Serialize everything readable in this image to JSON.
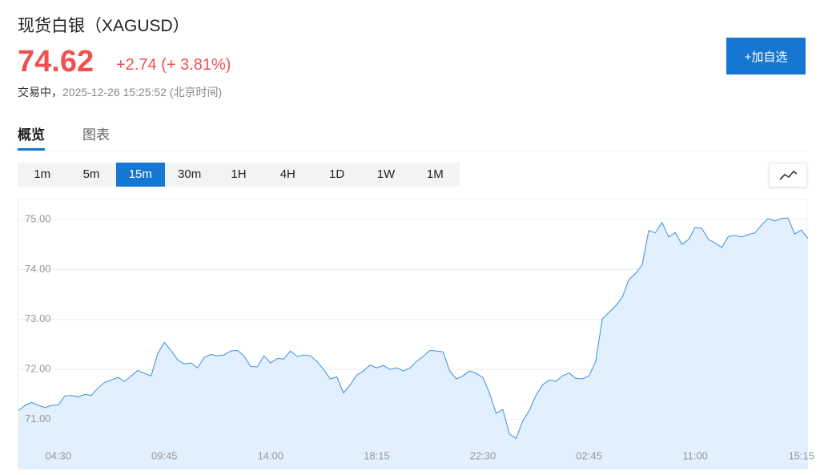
{
  "header": {
    "title": "现货白银（XAGUSD）",
    "price": "74.62",
    "change": "+2.74 (+ 3.81%)",
    "status": "交易中，",
    "time": "2025-12-26 15:25:52 (北京时间)"
  },
  "button": "+加自选",
  "tabs": [
    "概览",
    "图表"
  ],
  "active_tab": 0,
  "intervals": [
    "1m",
    "5m",
    "15m",
    "30m",
    "1H",
    "4H",
    "1D",
    "1W",
    "1M"
  ],
  "active_interval": 2,
  "chart_data": {
    "type": "area",
    "color": "#3a8ee0",
    "fill": "#e2effc",
    "grid": true,
    "ylim": [
      70,
      75.4
    ],
    "yticks": [
      {
        "value": 71,
        "label": "71.00"
      },
      {
        "value": 72,
        "label": "72.00"
      },
      {
        "value": 73,
        "label": "73.00"
      },
      {
        "value": 74,
        "label": "74.00"
      },
      {
        "value": 75,
        "label": "75.00"
      }
    ],
    "categories": [
      null,
      null,
      null,
      null,
      null,
      null,
      "04:30",
      null,
      null,
      null,
      null,
      null,
      null,
      null,
      null,
      null,
      null,
      null,
      null,
      null,
      null,
      null,
      "09:45",
      null,
      null,
      null,
      null,
      null,
      null,
      null,
      null,
      null,
      null,
      null,
      null,
      null,
      null,
      null,
      "14:00",
      null,
      null,
      null,
      null,
      null,
      null,
      null,
      null,
      null,
      null,
      null,
      null,
      null,
      null,
      null,
      "18:15",
      null,
      null,
      null,
      null,
      null,
      null,
      null,
      null,
      null,
      null,
      null,
      null,
      null,
      null,
      null,
      "22:30",
      null,
      null,
      null,
      null,
      null,
      null,
      null,
      null,
      null,
      null,
      null,
      null,
      null,
      null,
      null,
      "02:45",
      null,
      null,
      null,
      null,
      null,
      null,
      null,
      null,
      null,
      null,
      null,
      null,
      null,
      null,
      null,
      "11:00",
      null,
      null,
      null,
      null,
      null,
      null,
      null,
      null,
      null,
      null,
      null,
      null,
      null,
      null,
      null,
      "15:15",
      null
    ],
    "values": [
      71.18,
      71.28,
      71.34,
      71.28,
      71.24,
      71.28,
      71.29,
      71.47,
      71.48,
      71.45,
      71.5,
      71.48,
      71.63,
      71.74,
      71.79,
      71.84,
      71.76,
      71.87,
      71.98,
      71.92,
      71.87,
      72.32,
      72.54,
      72.38,
      72.19,
      72.11,
      72.13,
      72.03,
      72.24,
      72.3,
      72.27,
      72.29,
      72.37,
      72.38,
      72.27,
      72.06,
      72.05,
      72.27,
      72.13,
      72.22,
      72.21,
      72.37,
      72.26,
      72.29,
      72.27,
      72.16,
      72.0,
      71.81,
      71.85,
      71.53,
      71.69,
      71.89,
      71.97,
      72.09,
      72.03,
      72.08,
      72.0,
      72.03,
      71.97,
      72.03,
      72.16,
      72.26,
      72.38,
      72.37,
      72.35,
      71.97,
      71.81,
      71.87,
      71.97,
      71.92,
      71.84,
      71.52,
      71.12,
      71.2,
      70.71,
      70.62,
      70.96,
      71.18,
      71.48,
      71.69,
      71.79,
      71.76,
      71.87,
      71.93,
      71.82,
      71.81,
      71.87,
      72.16,
      73.01,
      73.14,
      73.27,
      73.44,
      73.8,
      73.92,
      74.09,
      74.78,
      74.73,
      74.94,
      74.65,
      74.74,
      74.5,
      74.6,
      74.84,
      74.82,
      74.6,
      74.53,
      74.44,
      74.66,
      74.68,
      74.65,
      74.7,
      74.73,
      74.89,
      75.02,
      74.97,
      75.02,
      75.03,
      74.71,
      74.79,
      74.62
    ]
  }
}
